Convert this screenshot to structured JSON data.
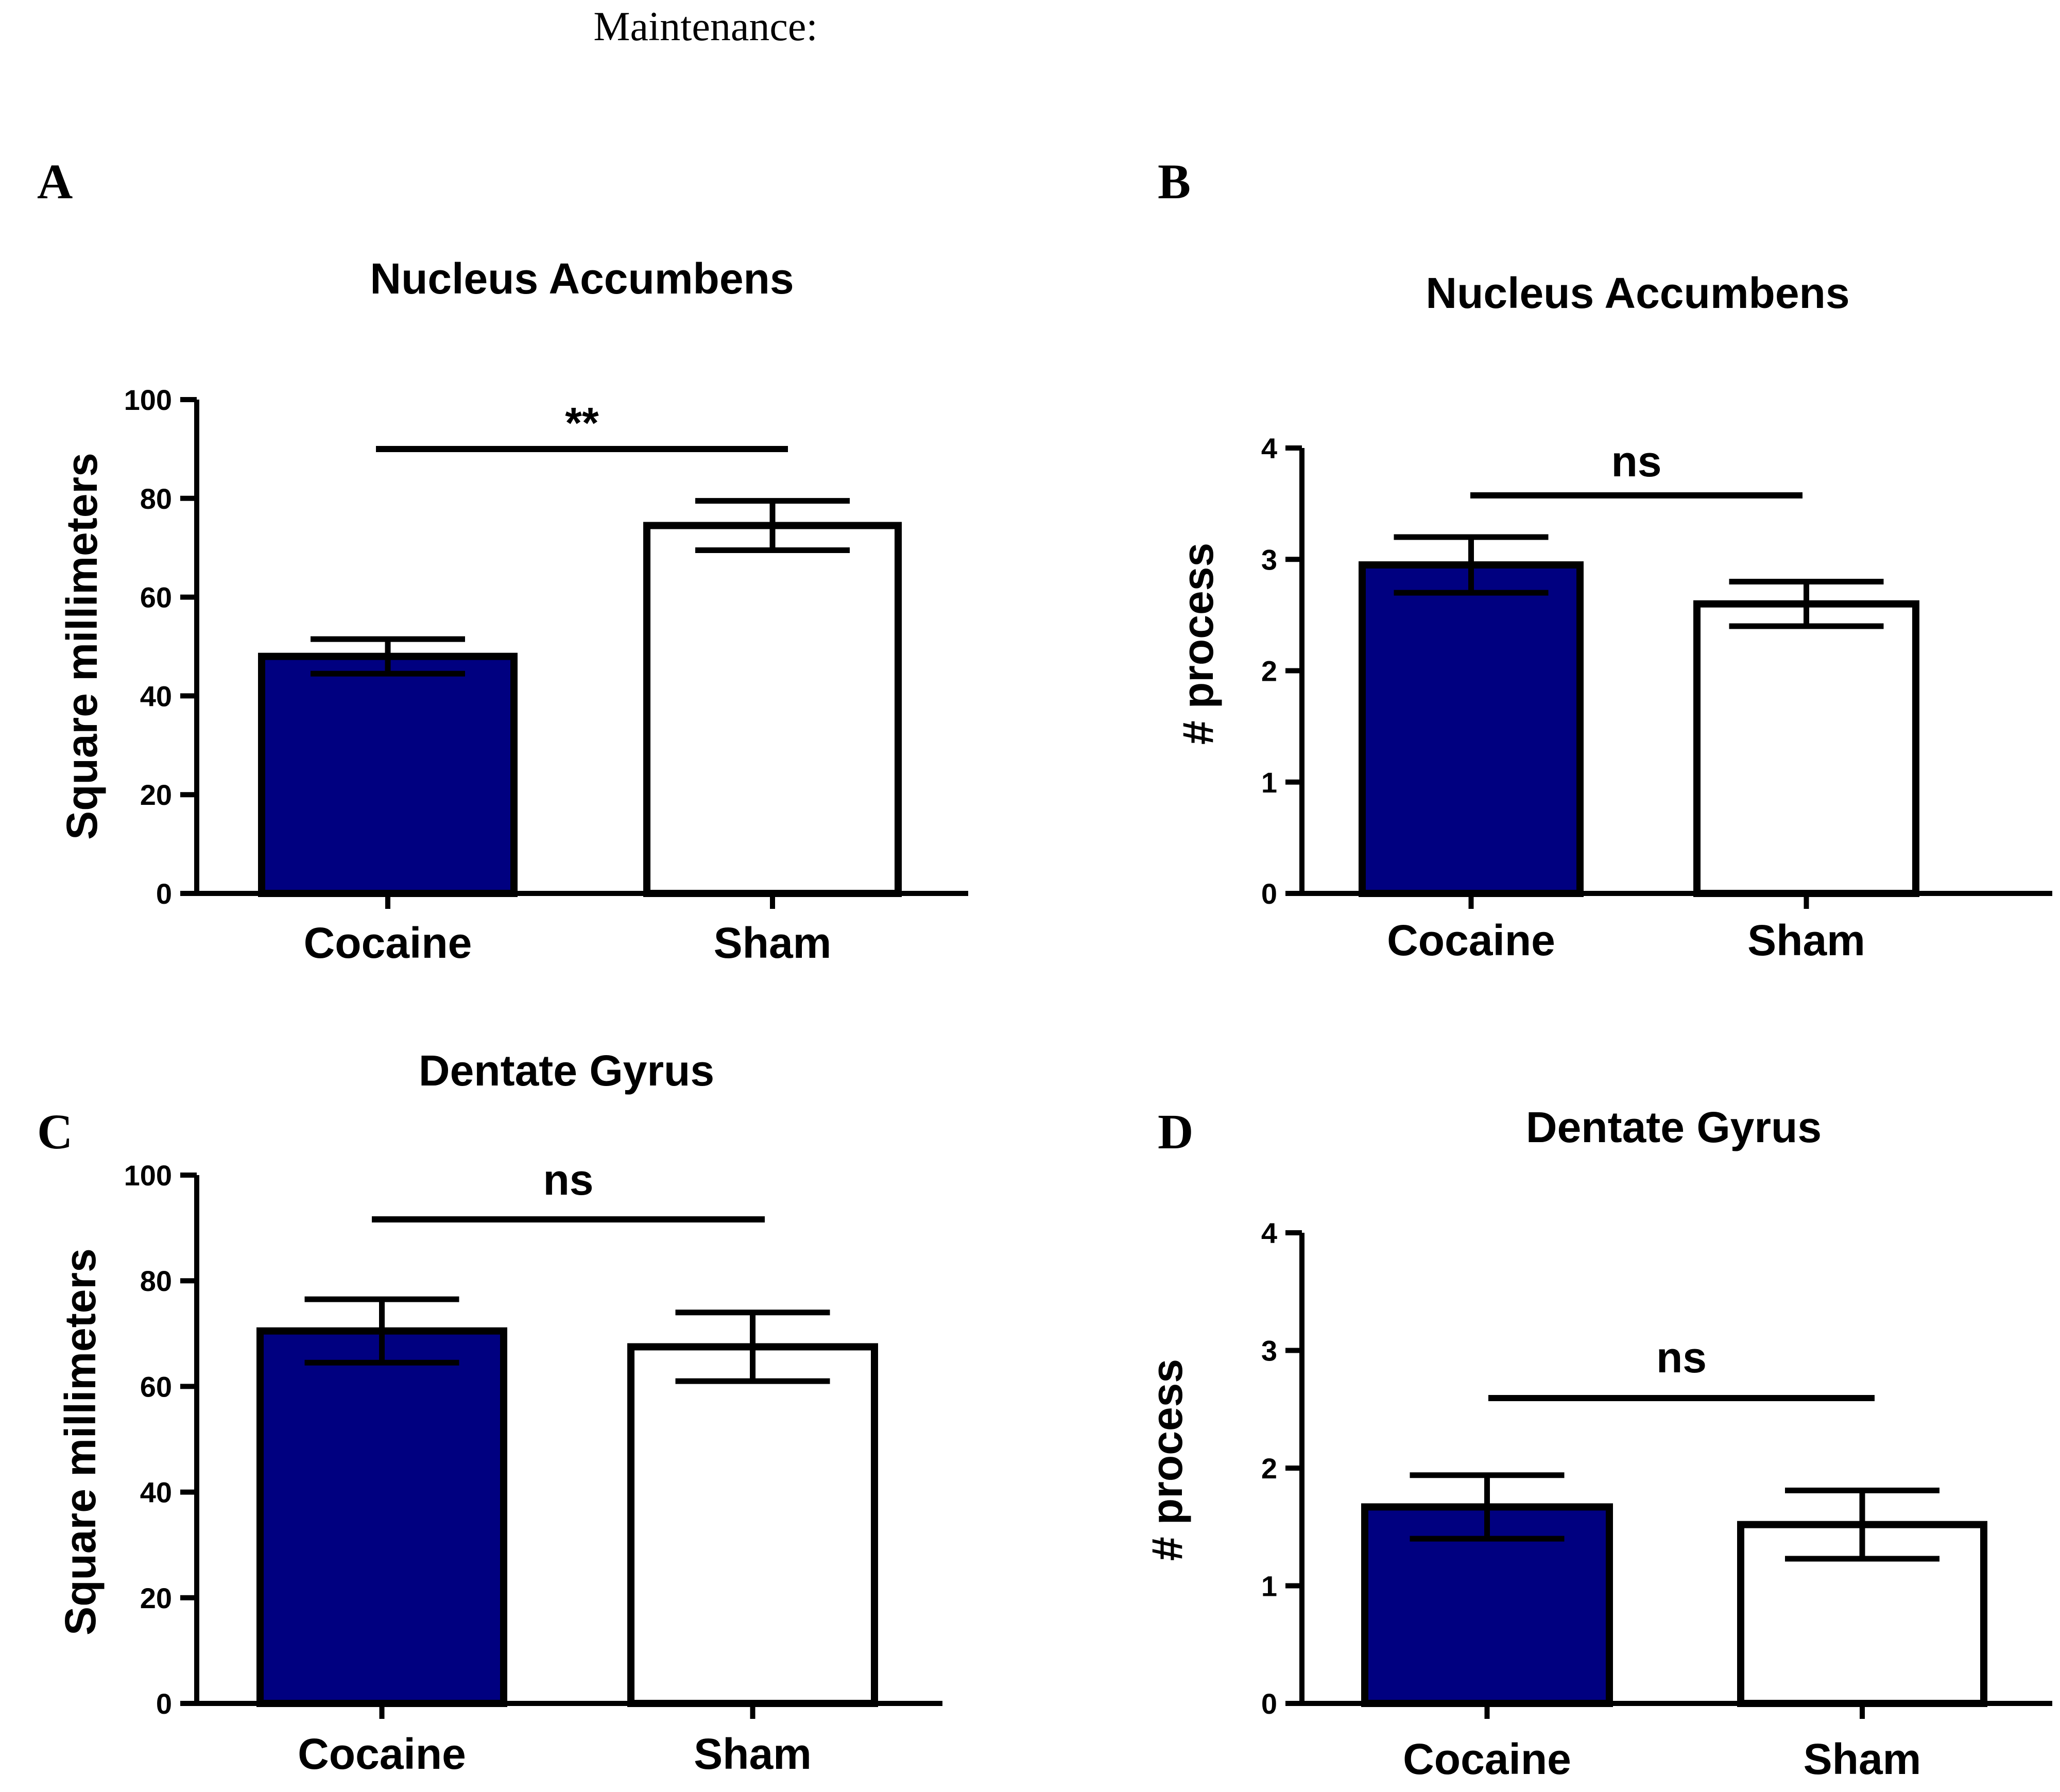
{
  "figure": {
    "heading": "Maintenance:"
  },
  "colors": {
    "cocaine_fill": "#000080",
    "sham_fill": "#ffffff",
    "stroke": "#000000"
  },
  "chart_data": [
    {
      "panel": "A",
      "type": "bar",
      "title": "Nucleus Accumbens",
      "xlabel": "",
      "ylabel": "Square millimeters",
      "categories": [
        "Cocaine",
        "Sham"
      ],
      "values": [
        48,
        74.5
      ],
      "errors": [
        3.5,
        5
      ],
      "ylim": [
        0,
        100
      ],
      "yticks": [
        0,
        20,
        40,
        60,
        80,
        100
      ],
      "tick_labels": [
        "0",
        "20",
        "40",
        "60",
        "80",
        "100"
      ],
      "significance": "**"
    },
    {
      "panel": "B",
      "type": "bar",
      "title": "Nucleus Accumbens",
      "xlabel": "",
      "ylabel": "# process",
      "categories": [
        "Cocaine",
        "Sham"
      ],
      "values": [
        2.95,
        2.6
      ],
      "errors": [
        0.25,
        0.2
      ],
      "ylim": [
        0,
        4
      ],
      "yticks": [
        0,
        1,
        2,
        3,
        4
      ],
      "tick_labels": [
        "0",
        "1",
        "2",
        "3",
        "4"
      ],
      "significance": "ns"
    },
    {
      "panel": "C",
      "type": "bar",
      "title": "Dentate Gyrus",
      "xlabel": "",
      "ylabel": "Square millimeters",
      "categories": [
        "Cocaine",
        "Sham"
      ],
      "values": [
        70.5,
        67.5
      ],
      "errors": [
        6,
        6.5
      ],
      "ylim": [
        0,
        100
      ],
      "yticks": [
        0,
        20,
        40,
        60,
        80,
        100
      ],
      "tick_labels": [
        "0",
        "20",
        "40",
        "60",
        "80",
        "100"
      ],
      "significance": "ns"
    },
    {
      "panel": "D",
      "type": "bar",
      "title": "Dentate Gyrus",
      "xlabel": "",
      "ylabel": "# process",
      "categories": [
        "Cocaine",
        "Sham"
      ],
      "values": [
        1.67,
        1.52
      ],
      "errors": [
        0.27,
        0.29
      ],
      "ylim": [
        0,
        4
      ],
      "yticks": [
        0,
        1,
        2,
        3,
        4
      ],
      "tick_labels": [
        "0",
        "1",
        "2",
        "3",
        "4"
      ],
      "significance": "ns"
    }
  ]
}
